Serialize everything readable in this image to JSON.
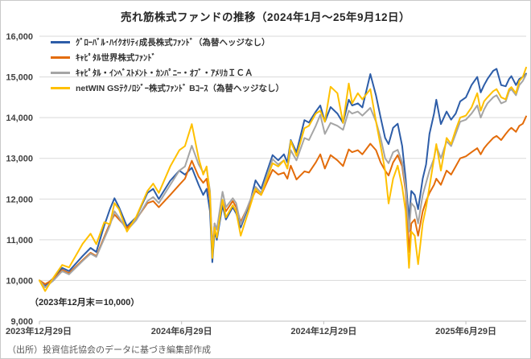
{
  "title": "売れ筋株式ファンドの推移（2024年1月〜25年9月12日）",
  "annotation": "（2023年12月末＝10,000）",
  "source": "（出所）投資信託協会のデータに基づき編集部作成",
  "chart_data": {
    "type": "line",
    "title": "売れ筋株式ファンドの推移（2024年1月〜25年9月12日）",
    "x_unit": "trading days since 2023-12-29",
    "grid": true,
    "legend_position": "top-left",
    "ylim": [
      9000,
      16000
    ],
    "ytick_step": 1000,
    "ytick_labels": [
      "9,000",
      "10,000",
      "11,000",
      "12,000",
      "13,000",
      "14,000",
      "15,000",
      "16,000"
    ],
    "x_ticks": [
      {
        "day": 0,
        "label": "2023年12月29日"
      },
      {
        "day": 125,
        "label": "2024年6月29日"
      },
      {
        "day": 250,
        "label": "2024年12月29日"
      },
      {
        "day": 375,
        "label": "2025年6月29日"
      }
    ],
    "x_max_day": 428,
    "x_end_label": "2025年9月12日",
    "x_days": [
      0,
      5,
      12,
      20,
      26,
      38,
      45,
      50,
      57,
      62,
      66,
      70,
      77,
      85,
      95,
      100,
      105,
      115,
      123,
      128,
      134,
      140,
      144,
      147,
      150,
      152,
      154,
      156,
      161,
      164,
      170,
      173,
      177,
      185,
      190,
      195,
      205,
      210,
      215,
      218,
      221,
      226,
      233,
      237,
      243,
      247,
      251,
      256,
      262,
      267,
      272,
      275,
      280,
      284,
      291,
      296,
      300,
      304,
      307,
      311,
      315,
      319,
      322,
      325,
      327,
      330,
      333,
      337,
      340,
      343,
      347,
      349,
      353,
      358,
      362,
      366,
      370,
      375,
      380,
      385,
      388,
      391,
      394,
      399,
      402,
      406,
      410,
      413,
      415,
      419,
      422,
      425,
      428
    ],
    "series": [
      {
        "name": "ｸﾞﾛｰﾊﾞﾙ･ﾊｲｸｵﾘﾃｨ成長株式ﾌｧﾝﾄﾞ（為替ヘッジなし）",
        "color": "#2D5DA8",
        "values": [
          10000,
          9870,
          10050,
          10310,
          10230,
          10600,
          10800,
          10700,
          11350,
          11750,
          12020,
          11800,
          11330,
          11550,
          12150,
          12250,
          12000,
          12450,
          12700,
          12600,
          12770,
          12350,
          12100,
          12250,
          11700,
          10450,
          11200,
          11000,
          11850,
          11500,
          11800,
          11650,
          11300,
          11900,
          12460,
          12250,
          13080,
          12950,
          13100,
          12900,
          13450,
          13150,
          13940,
          13880,
          14150,
          14300,
          13900,
          14260,
          14100,
          13870,
          14440,
          14300,
          14350,
          14250,
          15070,
          14540,
          14000,
          13500,
          13350,
          13750,
          13850,
          13300,
          12500,
          11480,
          12200,
          12100,
          11750,
          12500,
          12850,
          13600,
          14100,
          14440,
          13840,
          14150,
          13950,
          14100,
          14400,
          14500,
          14800,
          15000,
          14620,
          14800,
          14950,
          15150,
          15200,
          14800,
          14770,
          14950,
          15020,
          14800,
          14950,
          15000,
          15080
        ]
      },
      {
        "name": "ｷｬﾋﾟﾀﾙ世界株式ﾌｧﾝﾄﾞ",
        "color": "#E36C0A",
        "values": [
          10000,
          9910,
          10020,
          10260,
          10180,
          10500,
          10680,
          10600,
          11070,
          11400,
          11620,
          11500,
          11290,
          11500,
          11900,
          11950,
          11800,
          12100,
          12350,
          12500,
          12940,
          12550,
          12400,
          12500,
          12000,
          10800,
          11400,
          11250,
          11950,
          11700,
          11950,
          11800,
          11440,
          11900,
          12200,
          12100,
          12720,
          12600,
          12650,
          12500,
          12820,
          12480,
          12680,
          12650,
          12900,
          13100,
          12750,
          13080,
          12950,
          12810,
          13220,
          13150,
          13200,
          13100,
          13360,
          13200,
          12900,
          12700,
          12580,
          12900,
          13080,
          12800,
          12200,
          10700,
          11400,
          11500,
          11100,
          11700,
          11950,
          12150,
          12350,
          12500,
          12350,
          12700,
          12600,
          12800,
          13000,
          13050,
          13150,
          13250,
          13100,
          13250,
          13350,
          13500,
          13550,
          13450,
          13600,
          13700,
          13750,
          13650,
          13800,
          13850,
          14030
        ]
      },
      {
        "name": "ｷｬﾋﾟﾀﾙ・ｲﾝﾍﾞｽﾄﾒﾝﾄ・ｶﾝﾊﾟﾆｰ・ｵﾌﾞ・ｱﾒﾘｶＩＣＡ",
        "color": "#A5A5A5",
        "values": [
          10000,
          9830,
          9990,
          10230,
          10150,
          10480,
          10660,
          10580,
          11030,
          11350,
          11700,
          11550,
          11230,
          11480,
          11950,
          12050,
          11900,
          12350,
          12700,
          12800,
          13310,
          12850,
          12650,
          12750,
          12200,
          10700,
          11400,
          11250,
          12180,
          11800,
          12020,
          11900,
          11370,
          11950,
          12300,
          12150,
          12980,
          12850,
          12950,
          12750,
          13200,
          12950,
          13500,
          13450,
          13800,
          14070,
          13600,
          13870,
          13800,
          13700,
          14170,
          14100,
          14150,
          14050,
          14240,
          13900,
          13500,
          13000,
          12880,
          13150,
          13210,
          12900,
          12300,
          11200,
          11900,
          11800,
          11400,
          12100,
          12400,
          12700,
          13000,
          13300,
          13000,
          13420,
          13300,
          13600,
          13900,
          13950,
          14100,
          14300,
          14000,
          14200,
          14350,
          14500,
          14550,
          14350,
          14400,
          14650,
          14700,
          14550,
          14800,
          14900,
          15060
        ]
      },
      {
        "name": "netWIN GSﾃｸﾉﾛｼﾞｰ株式ﾌｧﾝﾄﾞ Bｺｰｽ（為替ヘッジなし）",
        "color": "#FFC000",
        "values": [
          10000,
          9740,
          10060,
          10380,
          10320,
          10900,
          11150,
          10890,
          11430,
          11380,
          11900,
          11750,
          11200,
          11560,
          12200,
          12380,
          12150,
          12800,
          13200,
          13300,
          13840,
          13000,
          12600,
          12800,
          12100,
          10550,
          11300,
          11050,
          11980,
          11550,
          11850,
          11700,
          11100,
          11800,
          12250,
          12100,
          12880,
          12800,
          12950,
          12750,
          13430,
          13060,
          13740,
          13800,
          14100,
          14170,
          13900,
          14760,
          14600,
          13870,
          14840,
          14350,
          14600,
          14450,
          14700,
          13900,
          13300,
          12700,
          11890,
          12500,
          12820,
          12300,
          11700,
          10310,
          11200,
          11100,
          10400,
          11400,
          11800,
          12300,
          13000,
          13350,
          12700,
          13500,
          13350,
          13700,
          14000,
          14050,
          14250,
          14600,
          14170,
          14400,
          14500,
          14650,
          14700,
          14500,
          14450,
          14700,
          14750,
          14600,
          14900,
          15000,
          15230
        ]
      }
    ]
  }
}
